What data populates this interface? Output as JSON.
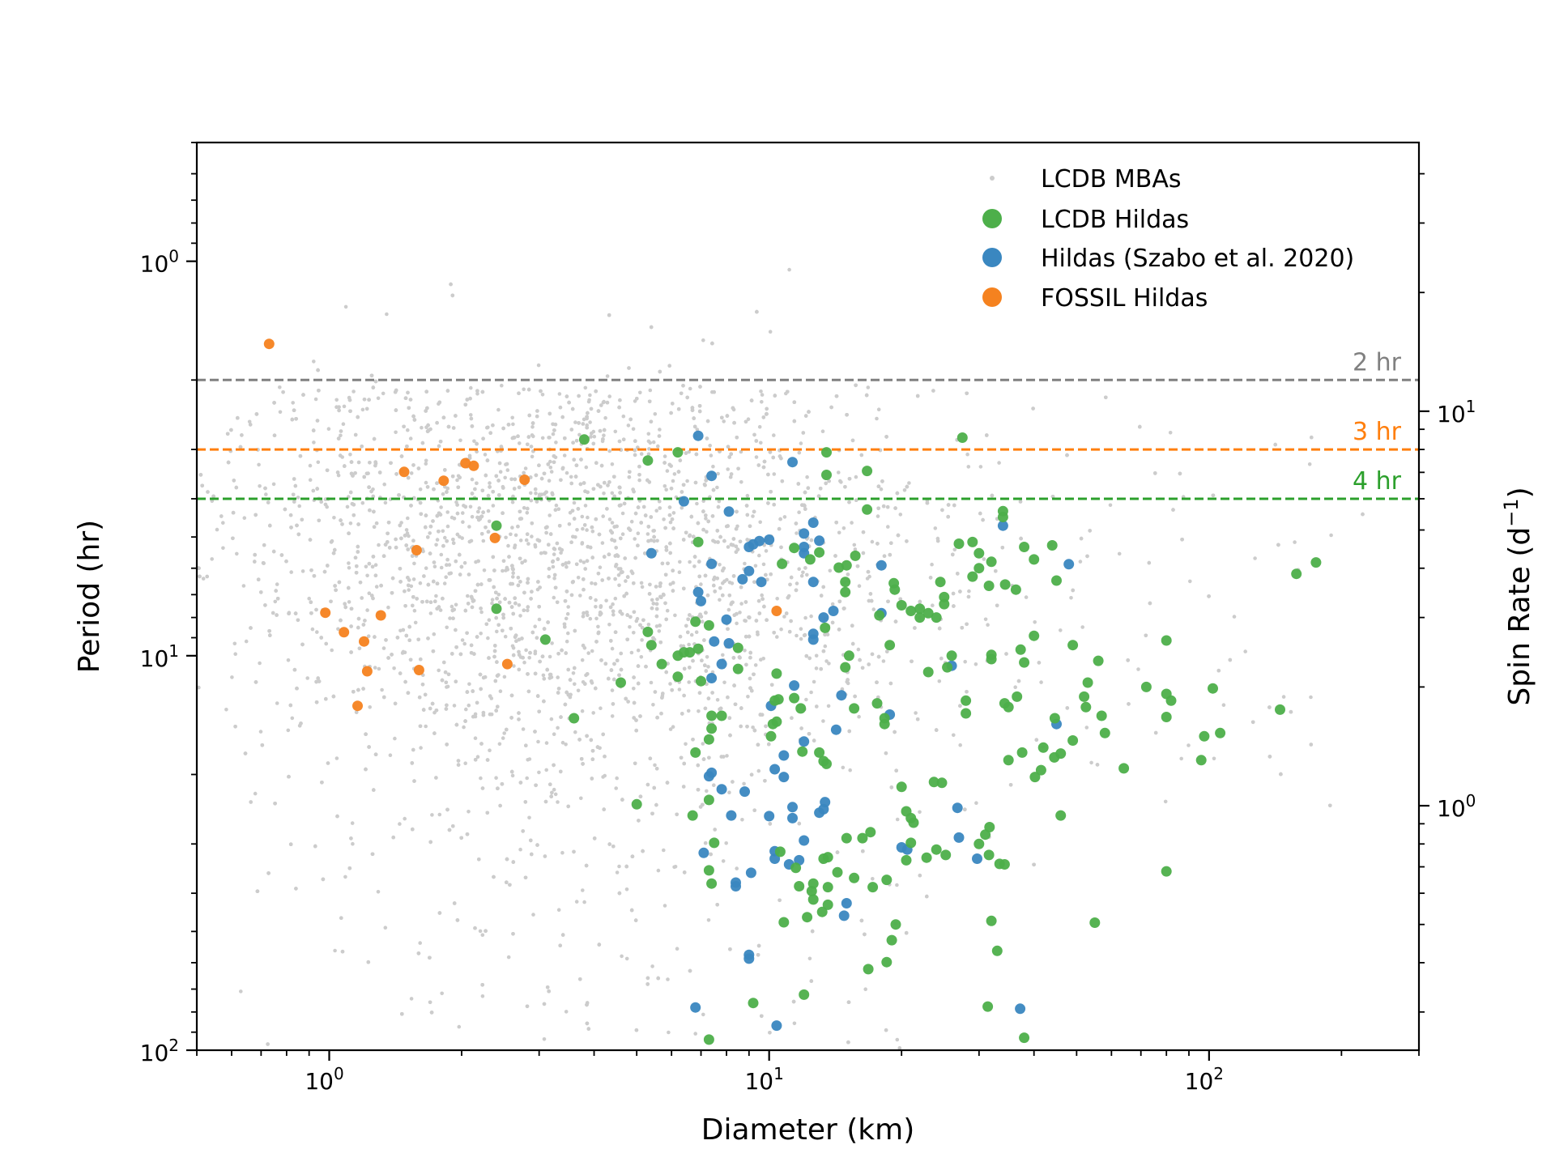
{
  "chart_data": {
    "type": "scatter",
    "xlabel": "Diameter (km)",
    "ylabel": "Period (hr)",
    "y2label": "Spin Rate (d",
    "y2label_sup": "−1",
    "y2label_close": ")",
    "xscale": "log",
    "yscale": "log",
    "y_inverted": true,
    "xlim": [
      0.5,
      300
    ],
    "ylim": [
      0.5,
      100
    ],
    "x_major_ticks": [
      {
        "value": 1,
        "base": "10",
        "exp": "0"
      },
      {
        "value": 10,
        "base": "10",
        "exp": "1"
      },
      {
        "value": 100,
        "base": "10",
        "exp": "2"
      }
    ],
    "y_major_ticks": [
      {
        "value": 1,
        "base": "10",
        "exp": "0"
      },
      {
        "value": 10,
        "base": "10",
        "exp": "1"
      },
      {
        "value": 100,
        "base": "10",
        "exp": "2"
      }
    ],
    "y2_major_ticks": [
      {
        "value": 10,
        "base": "10",
        "exp": "1"
      },
      {
        "value": 1,
        "base": "10",
        "exp": "0"
      }
    ],
    "legend": {
      "position": "top-right",
      "entries": [
        {
          "label": "LCDB MBAs",
          "color": "#cccccc"
        },
        {
          "label": "LCDB Hildas",
          "color": "#4daf4a"
        },
        {
          "label": "Hildas (Szabo et al. 2020)",
          "color": "#3a87c0"
        },
        {
          "label": "FOSSIL Hildas",
          "color": "#f5821f"
        }
      ]
    },
    "reference_lines": [
      {
        "period": 2,
        "label": "2 hr",
        "color": "#808080"
      },
      {
        "period": 3,
        "label": "3 hr",
        "color": "#ff7f0e"
      },
      {
        "period": 4,
        "label": "4 hr",
        "color": "#2ca02c"
      }
    ],
    "series": [
      {
        "name": "FOSSIL Hildas",
        "color": "#f5821f",
        "points": [
          [
            0.73,
            1.62
          ],
          [
            1.48,
            3.42
          ],
          [
            1.82,
            3.6
          ],
          [
            2.04,
            3.25
          ],
          [
            2.13,
            3.3
          ],
          [
            2.78,
            3.58
          ],
          [
            1.58,
            5.4
          ],
          [
            2.38,
            5.03
          ],
          [
            0.98,
            7.78
          ],
          [
            1.08,
            8.72
          ],
          [
            1.2,
            9.2
          ],
          [
            1.31,
            7.9
          ],
          [
            1.22,
            10.95
          ],
          [
            1.6,
            10.87
          ],
          [
            2.54,
            10.5
          ],
          [
            1.16,
            13.4
          ],
          [
            10.4,
            7.7
          ]
        ]
      },
      {
        "name": "Hildas (Szabo et al. 2020)",
        "color": "#3a87c0",
        "points": [
          [
            6.9,
            2.77
          ],
          [
            7.4,
            3.5
          ],
          [
            6.4,
            4.06
          ],
          [
            8.1,
            4.31
          ],
          [
            11.3,
            3.23
          ],
          [
            5.4,
            5.5
          ],
          [
            7.4,
            5.85
          ],
          [
            6.9,
            6.9
          ],
          [
            7.0,
            7.27
          ],
          [
            8.0,
            8.1
          ],
          [
            9.0,
            5.3
          ],
          [
            9.5,
            5.12
          ],
          [
            10.0,
            5.08
          ],
          [
            9.2,
            5.22
          ],
          [
            12.6,
            4.6
          ],
          [
            12.0,
            4.9
          ],
          [
            12.0,
            5.3
          ],
          [
            13.0,
            5.11
          ],
          [
            12.0,
            5.5
          ],
          [
            14.0,
            7.7
          ],
          [
            13.3,
            8.0
          ],
          [
            8.7,
            6.4
          ],
          [
            9.0,
            6.1
          ],
          [
            9.6,
            6.5
          ],
          [
            12.6,
            6.5
          ],
          [
            12.6,
            8.8
          ],
          [
            12.6,
            9.1
          ],
          [
            8.1,
            9.3
          ],
          [
            7.8,
            10.5
          ],
          [
            7.4,
            11.4
          ],
          [
            7.5,
            9.2
          ],
          [
            18.0,
            5.9
          ],
          [
            18.0,
            7.8
          ],
          [
            11.4,
            11.9
          ],
          [
            10.1,
            13.4
          ],
          [
            14.6,
            12.6
          ],
          [
            18.8,
            14.1
          ],
          [
            14.2,
            15.4
          ],
          [
            12.0,
            16.5
          ],
          [
            10.8,
            17.9
          ],
          [
            26.0,
            10.6
          ],
          [
            10.3,
            19.4
          ],
          [
            7.4,
            19.8
          ],
          [
            7.3,
            20.2
          ],
          [
            7.8,
            21.8
          ],
          [
            8.8,
            22.1
          ],
          [
            10.8,
            20.3
          ],
          [
            11.3,
            24.2
          ],
          [
            11.3,
            25.8
          ],
          [
            12.0,
            29.4
          ],
          [
            13.0,
            25.0
          ],
          [
            10.0,
            25.5
          ],
          [
            8.2,
            25.4
          ],
          [
            13.4,
            23.5
          ],
          [
            13.3,
            24.5
          ],
          [
            20.0,
            30.6
          ],
          [
            20.6,
            31.0
          ],
          [
            27.0,
            28.9
          ],
          [
            26.8,
            24.3
          ],
          [
            29.7,
            32.7
          ],
          [
            34.0,
            4.68
          ],
          [
            48.0,
            5.86
          ],
          [
            45.0,
            14.9
          ],
          [
            10.3,
            31.3
          ],
          [
            10.3,
            32.7
          ],
          [
            11.1,
            33.8
          ],
          [
            11.7,
            33.0
          ],
          [
            9.1,
            35.5
          ],
          [
            7.1,
            31.6
          ],
          [
            8.4,
            37.6
          ],
          [
            8.4,
            38.4
          ],
          [
            15.0,
            42.4
          ],
          [
            14.8,
            45.6
          ],
          [
            9.0,
            57.3
          ],
          [
            9.0,
            58.6
          ],
          [
            6.8,
            77.9
          ],
          [
            10.4,
            86.6
          ],
          [
            37.2,
            78.5
          ]
        ]
      },
      {
        "name": "LCDB Hildas",
        "color": "#4daf4a",
        "points": [
          [
            3.8,
            2.83
          ],
          [
            5.3,
            3.2
          ],
          [
            6.2,
            3.05
          ],
          [
            13.5,
            3.05
          ],
          [
            13.5,
            3.48
          ],
          [
            16.7,
            3.4
          ],
          [
            27.5,
            2.8
          ],
          [
            16.7,
            4.26
          ],
          [
            2.4,
            4.68
          ],
          [
            6.9,
            5.15
          ],
          [
            6.9,
            9.6
          ],
          [
            5.3,
            8.7
          ],
          [
            5.4,
            9.4
          ],
          [
            6.8,
            8.2
          ],
          [
            7.3,
            8.38
          ],
          [
            3.1,
            9.1
          ],
          [
            2.4,
            7.6
          ],
          [
            6.6,
            9.8
          ],
          [
            6.2,
            10.0
          ],
          [
            6.4,
            9.8
          ],
          [
            5.7,
            10.5
          ],
          [
            7.0,
            11.6
          ],
          [
            4.6,
            11.7
          ],
          [
            6.2,
            11.3
          ],
          [
            8.5,
            10.8
          ],
          [
            8.5,
            9.55
          ],
          [
            13.4,
            8.5
          ],
          [
            10.7,
            5.85
          ],
          [
            13.0,
            5.47
          ],
          [
            11.4,
            5.33
          ],
          [
            14.4,
            5.98
          ],
          [
            15.0,
            5.9
          ],
          [
            15.7,
            5.58
          ],
          [
            14.9,
            6.5
          ],
          [
            14.9,
            6.9
          ],
          [
            12.4,
            5.7
          ],
          [
            10.4,
            11.1
          ],
          [
            10.5,
            12.9
          ],
          [
            11.4,
            12.8
          ],
          [
            11.8,
            13.6
          ],
          [
            10.3,
            13.0
          ],
          [
            7.4,
            14.2
          ],
          [
            7.8,
            14.2
          ],
          [
            3.6,
            14.4
          ],
          [
            10.4,
            14.7
          ],
          [
            10.2,
            14.9
          ],
          [
            10.1,
            16.0
          ],
          [
            7.3,
            16.3
          ],
          [
            6.8,
            17.6
          ],
          [
            7.4,
            15.3
          ],
          [
            11.9,
            17.5
          ],
          [
            13.5,
            18.8
          ],
          [
            13.0,
            17.6
          ],
          [
            13.3,
            18.5
          ],
          [
            15.2,
            10.0
          ],
          [
            14.9,
            10.7
          ],
          [
            15.6,
            13.6
          ],
          [
            17.6,
            13.2
          ],
          [
            18.3,
            14.4
          ],
          [
            18.3,
            14.9
          ],
          [
            17.8,
            7.9
          ],
          [
            18.8,
            9.4
          ],
          [
            19.2,
            6.55
          ],
          [
            19.3,
            6.8
          ],
          [
            20.0,
            7.45
          ],
          [
            21.0,
            7.7
          ],
          [
            22.0,
            8.0
          ],
          [
            22.0,
            7.6
          ],
          [
            23.0,
            7.8
          ],
          [
            24.0,
            8.0
          ],
          [
            24.5,
            6.5
          ],
          [
            25.0,
            7.1
          ],
          [
            25.0,
            7.4
          ],
          [
            23.0,
            11.0
          ],
          [
            25.4,
            10.7
          ],
          [
            26.0,
            10.0
          ],
          [
            28.0,
            13.0
          ],
          [
            27.0,
            5.2
          ],
          [
            30.0,
            6.0
          ],
          [
            29.0,
            6.3
          ],
          [
            31.6,
            6.65
          ],
          [
            32.0,
            5.78
          ],
          [
            34.4,
            6.6
          ],
          [
            34.0,
            4.3
          ],
          [
            34.0,
            4.45
          ],
          [
            38.0,
            5.3
          ],
          [
            40.0,
            5.7
          ],
          [
            44.0,
            5.25
          ],
          [
            45.0,
            6.45
          ],
          [
            30.0,
            5.5
          ],
          [
            29.0,
            5.15
          ],
          [
            36.4,
            6.8
          ],
          [
            37.3,
            9.65
          ],
          [
            32.0,
            9.95
          ],
          [
            28.0,
            14.0
          ],
          [
            32.0,
            10.2
          ],
          [
            34.3,
            13.2
          ],
          [
            35.0,
            13.5
          ],
          [
            36.6,
            12.7
          ],
          [
            37.6,
            17.6
          ],
          [
            35.0,
            18.4
          ],
          [
            38.0,
            10.4
          ],
          [
            40.0,
            8.9
          ],
          [
            42.0,
            17.1
          ],
          [
            40.2,
            20.3
          ],
          [
            41.5,
            19.5
          ],
          [
            44.6,
            14.4
          ],
          [
            46.0,
            17.7
          ],
          [
            49.0,
            16.4
          ],
          [
            49.0,
            9.4
          ],
          [
            53.0,
            11.7
          ],
          [
            52.0,
            12.7
          ],
          [
            52.5,
            13.5
          ],
          [
            56.0,
            10.3
          ],
          [
            57.0,
            14.2
          ],
          [
            58.0,
            15.7
          ],
          [
            64.0,
            19.3
          ],
          [
            72.0,
            12.0
          ],
          [
            80.0,
            12.5
          ],
          [
            82.0,
            13.0
          ],
          [
            80.0,
            14.3
          ],
          [
            80.0,
            9.15
          ],
          [
            96.0,
            18.4
          ],
          [
            97.5,
            16.0
          ],
          [
            102.0,
            12.1
          ],
          [
            106.0,
            15.7
          ],
          [
            145.0,
            13.7
          ],
          [
            158.0,
            6.2
          ],
          [
            175.0,
            5.8
          ],
          [
            46.0,
            25.4
          ],
          [
            44.5,
            18.1
          ],
          [
            31.0,
            28.4
          ],
          [
            15.0,
            29.0
          ],
          [
            17.0,
            28.0
          ],
          [
            16.3,
            29.0
          ],
          [
            20.5,
            24.8
          ],
          [
            21.0,
            25.8
          ],
          [
            21.3,
            26.5
          ],
          [
            24.7,
            21.0
          ],
          [
            23.7,
            20.9
          ],
          [
            20.0,
            21.5
          ],
          [
            21.0,
            29.8
          ],
          [
            22.8,
            32.5
          ],
          [
            24.0,
            31.0
          ],
          [
            25.2,
            32.0
          ],
          [
            30.0,
            30.0
          ],
          [
            31.6,
            32.0
          ],
          [
            33.4,
            33.7
          ],
          [
            34.3,
            33.8
          ],
          [
            31.7,
            27.2
          ],
          [
            20.5,
            33.0
          ],
          [
            18.5,
            37.0
          ],
          [
            19.4,
            48.0
          ],
          [
            19.0,
            52.6
          ],
          [
            17.2,
            38.6
          ],
          [
            13.6,
            38.6
          ],
          [
            12.6,
            37.8
          ],
          [
            14.3,
            35.4
          ],
          [
            15.6,
            36.6
          ],
          [
            13.6,
            32.4
          ],
          [
            13.3,
            32.7
          ],
          [
            11.7,
            38.4
          ],
          [
            12.6,
            41.5
          ],
          [
            10.8,
            47.4
          ],
          [
            16.8,
            62.3
          ],
          [
            18.5,
            59.8
          ],
          [
            12.0,
            72.3
          ],
          [
            9.2,
            75.9
          ],
          [
            7.3,
            94.0
          ],
          [
            31.4,
            77.5
          ],
          [
            38.0,
            93.0
          ],
          [
            33.0,
            56.0
          ],
          [
            32.0,
            47.0
          ],
          [
            55.0,
            47.5
          ],
          [
            80.0,
            35.2
          ],
          [
            5.0,
            23.8
          ],
          [
            7.3,
            23.2
          ],
          [
            7.5,
            29.8
          ],
          [
            6.7,
            25.4
          ],
          [
            7.3,
            35.0
          ],
          [
            7.4,
            37.8
          ],
          [
            10.6,
            31.4
          ],
          [
            11.5,
            34.5
          ],
          [
            12.5,
            39.5
          ],
          [
            12.2,
            46.0
          ],
          [
            13.2,
            44.6
          ],
          [
            13.6,
            42.8
          ]
        ]
      }
    ]
  }
}
